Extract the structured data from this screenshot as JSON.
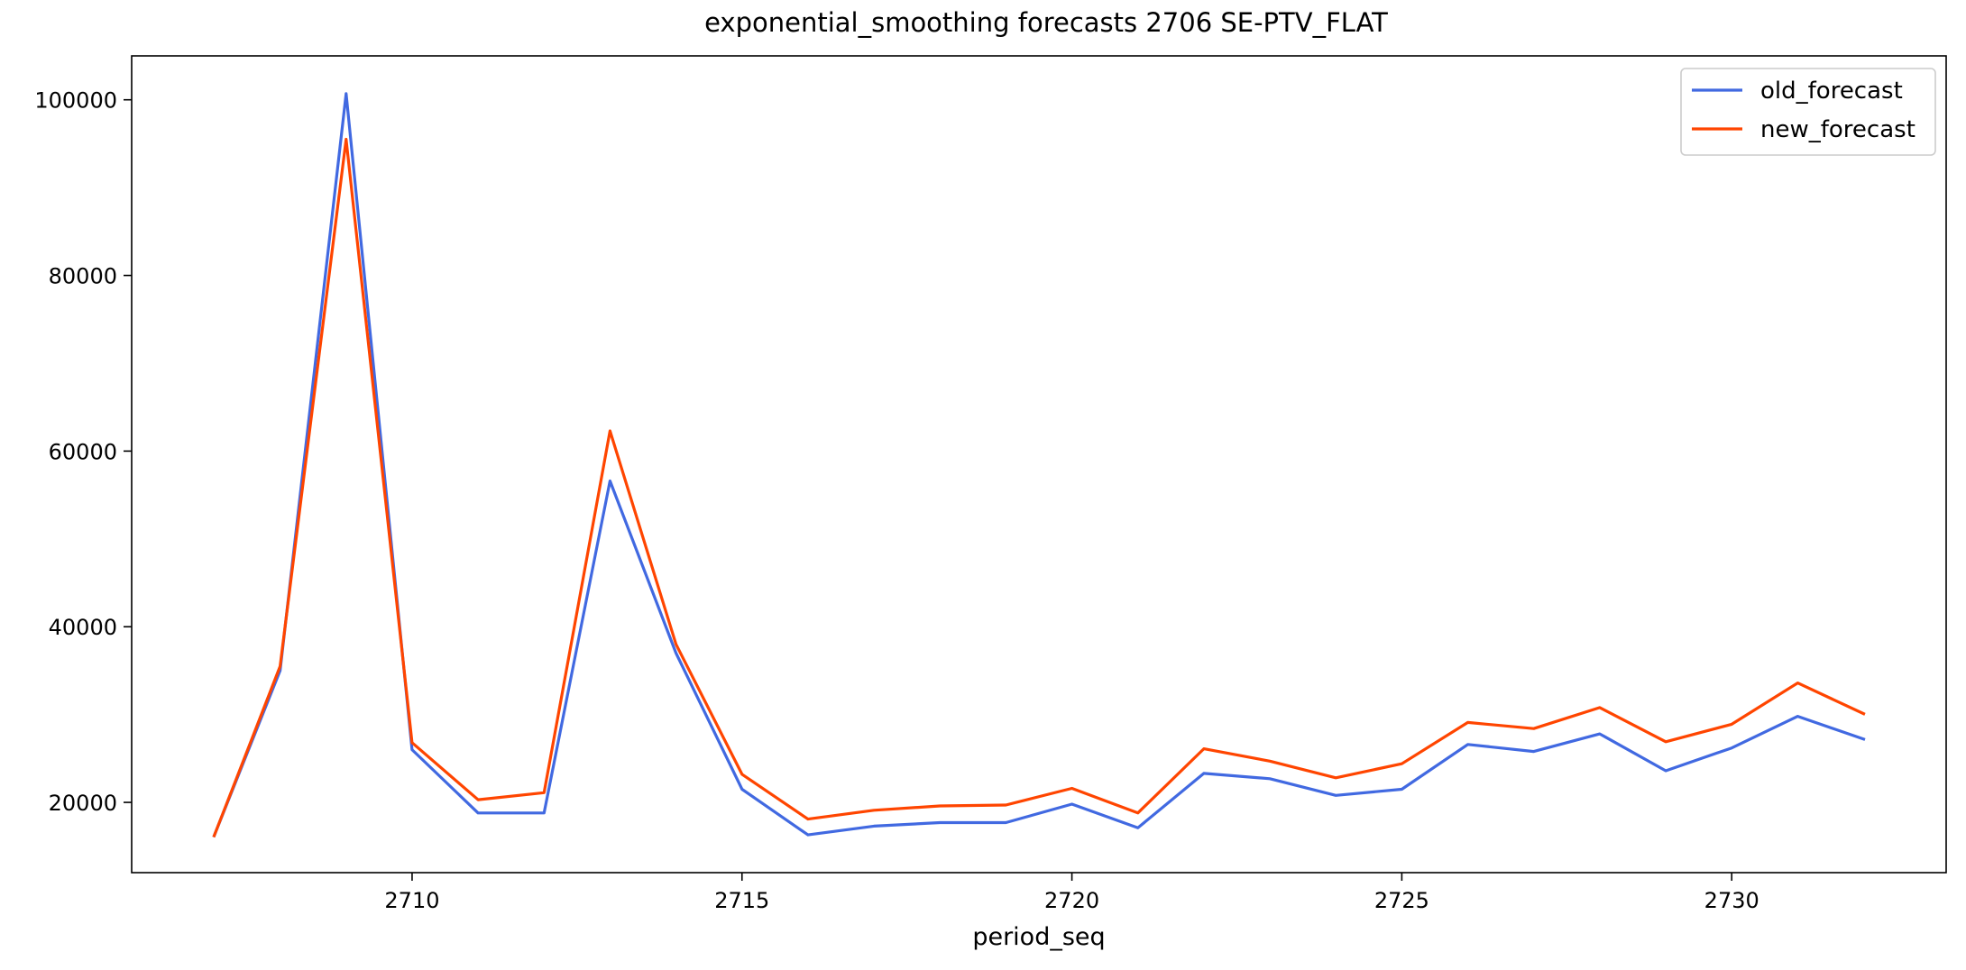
{
  "chart_data": {
    "type": "line",
    "title": "exponential_smoothing forecasts 2706 SE-PTV_FLAT",
    "xlabel": "period_seq",
    "ylabel": "",
    "x": [
      2707,
      2708,
      2709,
      2710,
      2711,
      2712,
      2713,
      2714,
      2715,
      2716,
      2717,
      2718,
      2719,
      2720,
      2721,
      2722,
      2723,
      2724,
      2725,
      2726,
      2727,
      2728,
      2729,
      2730,
      2731,
      2732
    ],
    "xlim": [
      2705.75,
      2733.25
    ],
    "ylim": [
      12000,
      105000
    ],
    "xticks": [
      2710,
      2715,
      2720,
      2725,
      2730
    ],
    "yticks": [
      20000,
      40000,
      60000,
      80000,
      100000
    ],
    "legend_position": "top-right",
    "grid": false,
    "series": [
      {
        "name": "old_forecast",
        "color": "#4169E1",
        "values": [
          16200,
          35000,
          100700,
          26000,
          18800,
          18800,
          56600,
          37000,
          21500,
          16300,
          17300,
          17700,
          17700,
          19800,
          17100,
          23300,
          22700,
          20800,
          21500,
          26600,
          25800,
          27800,
          23600,
          26200,
          29800,
          27200
        ]
      },
      {
        "name": "new_forecast",
        "color": "#FF4500",
        "values": [
          16200,
          35500,
          95500,
          26800,
          20300,
          21100,
          62300,
          38000,
          23200,
          18100,
          19100,
          19600,
          19700,
          21600,
          18800,
          26100,
          24700,
          22800,
          24400,
          29100,
          28400,
          30800,
          26900,
          28900,
          33600,
          30100
        ]
      }
    ]
  }
}
